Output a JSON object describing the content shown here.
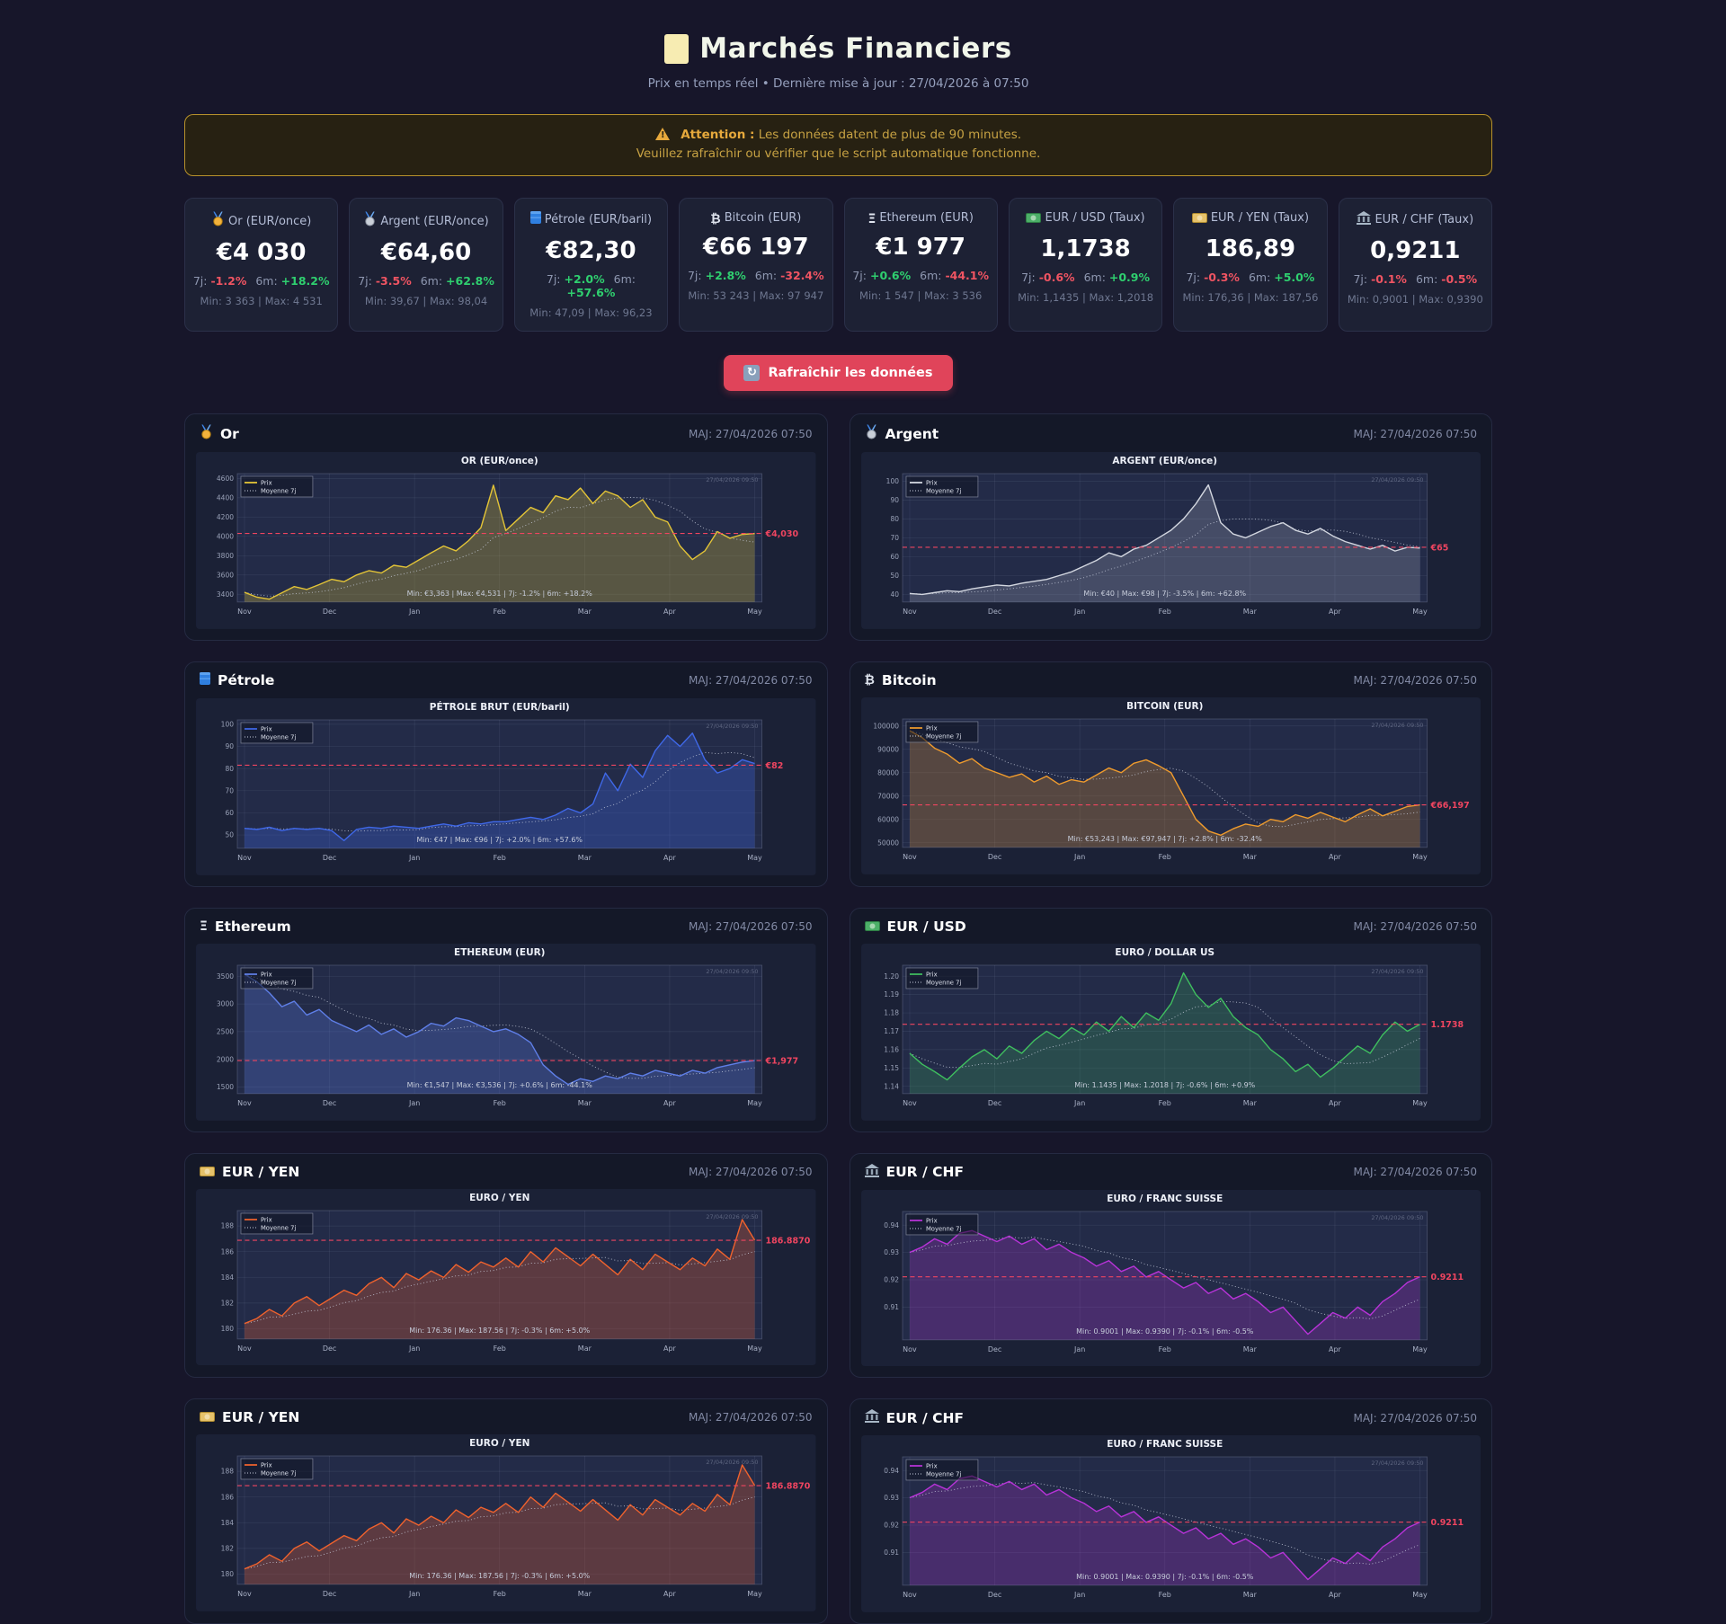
{
  "header": {
    "title": "Marchés Financiers",
    "subtitle": "Prix en temps réel • Dernière mise à jour : 27/04/2026 à 07:50"
  },
  "warning": {
    "bold": "Attention :",
    "line1": "Les données datent de plus de 90 minutes.",
    "line2": "Veuillez rafraîchir ou vérifier que le script automatique fonctionne."
  },
  "refresh": {
    "label": "Rafraîchir les données"
  },
  "shared": {
    "d7_label": "7j:",
    "m6_label": "6m:",
    "maj": "MAJ: 27/04/2026 07:50",
    "legend": [
      "Prix",
      "Moyenne 7j"
    ],
    "date_note": "27/04/2026 09:50",
    "pos_color": "#2fcf6f",
    "neg_color": "#f05462",
    "avg_color": "#ef4560"
  },
  "cards": [
    {
      "icon": "gold-medal",
      "label": "Or (EUR/once)",
      "price": "€4 030",
      "d7": "-1.2%",
      "d7_dir": "neg",
      "m6": "+18.2%",
      "m6_dir": "pos",
      "minmax": "Min: 3 363 | Max: 4 531"
    },
    {
      "icon": "silver-medal",
      "label": "Argent (EUR/once)",
      "price": "€64,60",
      "d7": "-3.5%",
      "d7_dir": "neg",
      "m6": "+62.8%",
      "m6_dir": "pos",
      "minmax": "Min: 39,67 | Max: 98,04"
    },
    {
      "icon": "oil-drum",
      "label": "Pétrole (EUR/baril)",
      "price": "€82,30",
      "d7": "+2.0%",
      "d7_dir": "pos",
      "m6": "+57.6%",
      "m6_dir": "pos",
      "minmax": "Min: 47,09 | Max: 96,23"
    },
    {
      "icon": "bitcoin",
      "label": "Bitcoin (EUR)",
      "price": "€66 197",
      "d7": "+2.8%",
      "d7_dir": "pos",
      "m6": "-32.4%",
      "m6_dir": "neg",
      "minmax": "Min: 53 243 | Max: 97 947"
    },
    {
      "icon": "ethereum",
      "label": "Ethereum (EUR)",
      "price": "€1 977",
      "d7": "+0.6%",
      "d7_dir": "pos",
      "m6": "-44.1%",
      "m6_dir": "neg",
      "minmax": "Min: 1 547 | Max: 3 536"
    },
    {
      "icon": "dollar-banknote",
      "label": "EUR / USD (Taux)",
      "price": "1,1738",
      "d7": "-0.6%",
      "d7_dir": "neg",
      "m6": "+0.9%",
      "m6_dir": "pos",
      "minmax": "Min: 1,1435 | Max: 1,2018"
    },
    {
      "icon": "yen-banknote",
      "label": "EUR / YEN (Taux)",
      "price": "186,89",
      "d7": "-0.3%",
      "d7_dir": "neg",
      "m6": "+5.0%",
      "m6_dir": "pos",
      "minmax": "Min: 176,36 | Max: 187,56"
    },
    {
      "icon": "bank",
      "label": "EUR / CHF (Taux)",
      "price": "0,9211",
      "d7": "-0.1%",
      "d7_dir": "neg",
      "m6": "-0.5%",
      "m6_dir": "neg",
      "minmax": "Min: 0,9001 | Max: 0,9390"
    }
  ],
  "panels": [
    {
      "icon": "gold-medal",
      "title": "Or",
      "chart": 0
    },
    {
      "icon": "silver-medal",
      "title": "Argent",
      "chart": 1
    },
    {
      "icon": "oil-drum",
      "title": "Pétrole",
      "chart": 2
    },
    {
      "icon": "bitcoin",
      "title": "Bitcoin",
      "chart": 3
    },
    {
      "icon": "ethereum",
      "title": "Ethereum",
      "chart": 4
    },
    {
      "icon": "dollar-banknote",
      "title": "EUR / USD",
      "chart": 5
    },
    {
      "icon": "yen-banknote",
      "title": "EUR / YEN",
      "chart": 6
    },
    {
      "icon": "bank",
      "title": "EUR / CHF",
      "chart": 7
    },
    {
      "icon": "yen-banknote",
      "title": "EUR / YEN",
      "chart": 6
    },
    {
      "icon": "bank",
      "title": "EUR / CHF",
      "chart": 7
    }
  ],
  "chart_data": [
    {
      "type": "line",
      "title": "OR (EUR/once)",
      "color": "#e3c437",
      "fill": "rgba(227,196,55,0.28)",
      "x_labels": [
        "Nov",
        "Dec",
        "Jan",
        "Feb",
        "Mar",
        "Apr",
        "May"
      ],
      "y_range": [
        3320,
        4650
      ],
      "tick_vals": [
        4600,
        4400,
        4200,
        4000,
        3800,
        3600,
        3400
      ],
      "tick_labels": [
        "4600",
        "4400",
        "4200",
        "4000",
        "3800",
        "3600",
        "3400"
      ],
      "avg_value": 4030,
      "avg_label": "€4,030",
      "annotation": "Min: €3,363 | Max: €4,531 | 7j: -1.2% | 6m: +18.2%",
      "values": [
        3420,
        3370,
        3350,
        3415,
        3480,
        3450,
        3500,
        3555,
        3530,
        3600,
        3645,
        3620,
        3700,
        3680,
        3755,
        3830,
        3900,
        3850,
        3955,
        4090,
        4530,
        4060,
        4180,
        4300,
        4245,
        4420,
        4380,
        4500,
        4340,
        4470,
        4420,
        4300,
        4380,
        4200,
        4150,
        3900,
        3760,
        3850,
        4050,
        3980,
        4020,
        4030
      ]
    },
    {
      "type": "line",
      "title": "ARGENT (EUR/once)",
      "color": "#d3d7e0",
      "fill": "rgba(190,196,210,0.22)",
      "x_labels": [
        "Nov",
        "Dec",
        "Jan",
        "Feb",
        "Mar",
        "Apr",
        "May"
      ],
      "y_range": [
        36,
        104
      ],
      "tick_vals": [
        100,
        90,
        80,
        70,
        60,
        50,
        40
      ],
      "tick_labels": [
        "100",
        "90",
        "80",
        "70",
        "60",
        "50",
        "40"
      ],
      "avg_value": 65,
      "avg_label": "€65",
      "annotation": "Min: €40 | Max: €98 | 7j: -3.5% | 6m: +62.8%",
      "values": [
        40.5,
        40,
        41,
        42,
        41.5,
        43,
        44,
        45,
        44.5,
        46,
        47,
        48,
        50,
        52,
        55,
        58,
        62,
        60,
        64,
        66,
        70,
        74,
        80,
        88,
        98,
        78,
        72,
        70,
        73,
        76,
        78,
        74,
        72,
        75,
        71,
        68,
        66,
        64,
        66,
        63,
        65,
        64.6
      ]
    },
    {
      "type": "line",
      "title": "PÉTROLE BRUT (EUR/baril)",
      "color": "#3f68e8",
      "fill": "rgba(63,104,232,0.30)",
      "x_labels": [
        "Nov",
        "Dec",
        "Jan",
        "Feb",
        "Mar",
        "Apr",
        "May"
      ],
      "y_range": [
        44,
        102
      ],
      "tick_vals": [
        100,
        90,
        80,
        70,
        60,
        50
      ],
      "tick_labels": [
        "100",
        "90",
        "80",
        "70",
        "60",
        "50"
      ],
      "avg_value": 81.5,
      "avg_label": "€82",
      "annotation": "Min: €47 | Max: €96 | 7j: +2.0% | 6m: +57.6%",
      "values": [
        53,
        52.5,
        53.5,
        52,
        53,
        52.5,
        53,
        52,
        47.5,
        52.5,
        53.5,
        53,
        54,
        53.5,
        53,
        54,
        55,
        54,
        55.5,
        55,
        56,
        56,
        57,
        58,
        57,
        59,
        62,
        60,
        64,
        78,
        70,
        82,
        76,
        88,
        95,
        90,
        96,
        84,
        78,
        80,
        84,
        82.3
      ]
    },
    {
      "type": "line",
      "title": "BITCOIN (EUR)",
      "color": "#ef9b2d",
      "fill": "rgba(239,155,45,0.25)",
      "x_labels": [
        "Nov",
        "Dec",
        "Jan",
        "Feb",
        "Mar",
        "Apr",
        "May"
      ],
      "y_range": [
        48000,
        103000
      ],
      "tick_vals": [
        100000,
        90000,
        80000,
        70000,
        60000,
        50000
      ],
      "tick_labels": [
        "100000",
        "90000",
        "80000",
        "70000",
        "60000",
        "50000"
      ],
      "avg_value": 66197,
      "avg_label": "€66,197",
      "annotation": "Min: €53,243 | Max: €97,947 | 7j: +2.8% | 6m: -32.4%",
      "values": [
        97947,
        95000,
        90500,
        88000,
        84000,
        86000,
        82000,
        80000,
        78000,
        79500,
        76000,
        78500,
        75000,
        77000,
        76000,
        79000,
        82000,
        80000,
        84000,
        85500,
        83000,
        80000,
        70000,
        60000,
        55000,
        53243,
        56000,
        58000,
        57000,
        60000,
        59000,
        62000,
        60500,
        63000,
        61000,
        59000,
        62000,
        64500,
        61500,
        63500,
        65500,
        66197
      ]
    },
    {
      "type": "line",
      "title": "ETHEREUM (EUR)",
      "color": "#5f7fe8",
      "fill": "rgba(95,127,232,0.28)",
      "x_labels": [
        "Nov",
        "Dec",
        "Jan",
        "Feb",
        "Mar",
        "Apr",
        "May"
      ],
      "y_range": [
        1380,
        3700
      ],
      "tick_vals": [
        3500,
        3000,
        2500,
        2000,
        1500
      ],
      "tick_labels": [
        "3500",
        "3000",
        "2500",
        "2000",
        "1500"
      ],
      "avg_value": 1977,
      "avg_label": "€1,977",
      "annotation": "Min: €1,547 | Max: €3,536 | 7j: +0.6% | 6m: -44.1%",
      "values": [
        3536,
        3400,
        3200,
        2950,
        3050,
        2800,
        2900,
        2700,
        2600,
        2500,
        2620,
        2450,
        2550,
        2400,
        2500,
        2650,
        2600,
        2750,
        2700,
        2600,
        2500,
        2550,
        2450,
        2300,
        1900,
        1700,
        1547,
        1650,
        1600,
        1700,
        1650,
        1750,
        1700,
        1800,
        1750,
        1700,
        1800,
        1750,
        1850,
        1900,
        1950,
        1977
      ]
    },
    {
      "type": "line",
      "title": "EURO / DOLLAR US",
      "color": "#3fbf5f",
      "fill": "rgba(63,191,95,0.22)",
      "x_labels": [
        "Nov",
        "Dec",
        "Jan",
        "Feb",
        "Mar",
        "Apr",
        "May"
      ],
      "y_range": [
        1.136,
        1.206
      ],
      "tick_vals": [
        1.2,
        1.19,
        1.18,
        1.17,
        1.16,
        1.15,
        1.14
      ],
      "tick_labels": [
        "1.20",
        "1.19",
        "1.18",
        "1.17",
        "1.16",
        "1.15",
        "1.14"
      ],
      "avg_value": 1.1738,
      "avg_label": "1.1738",
      "annotation": "Min: 1.1435 | Max: 1.2018 | 7j: -0.6% | 6m: +0.9%",
      "values": [
        1.158,
        1.152,
        1.148,
        1.1435,
        1.15,
        1.156,
        1.16,
        1.155,
        1.162,
        1.158,
        1.165,
        1.17,
        1.166,
        1.172,
        1.168,
        1.175,
        1.17,
        1.178,
        1.172,
        1.18,
        1.176,
        1.185,
        1.2018,
        1.19,
        1.183,
        1.188,
        1.178,
        1.172,
        1.168,
        1.16,
        1.155,
        1.148,
        1.152,
        1.145,
        1.15,
        1.156,
        1.162,
        1.158,
        1.168,
        1.175,
        1.17,
        1.1738
      ]
    },
    {
      "type": "line",
      "title": "EURO / YEN",
      "color": "#f0622d",
      "fill": "rgba(240,98,45,0.28)",
      "x_labels": [
        "Nov",
        "Dec",
        "Jan",
        "Feb",
        "Mar",
        "Apr",
        "May"
      ],
      "y_range": [
        179.2,
        189.2
      ],
      "tick_vals": [
        188,
        186,
        184,
        182,
        180
      ],
      "tick_labels": [
        "188",
        "186",
        "184",
        "182",
        "180"
      ],
      "avg_value": 186.887,
      "avg_label": "186.8870",
      "annotation": "Min: 176.36 | Max: 187.56 | 7j: -0.3% | 6m: +5.0%",
      "values": [
        180.4,
        180.8,
        181.5,
        181,
        182,
        182.5,
        181.8,
        182.4,
        183,
        182.6,
        183.5,
        184,
        183.2,
        184.3,
        183.8,
        184.5,
        184,
        185,
        184.4,
        185.2,
        184.8,
        185.5,
        184.8,
        186,
        185.2,
        186.3,
        185.6,
        184.9,
        185.8,
        185,
        184.2,
        185.4,
        184.6,
        185.8,
        185.2,
        184.6,
        185.5,
        184.9,
        186.2,
        185.4,
        188.5,
        186.89
      ]
    },
    {
      "type": "line",
      "title": "EURO / FRANC SUISSE",
      "color": "#b833d8",
      "fill": "rgba(184,51,216,0.25)",
      "x_labels": [
        "Nov",
        "Dec",
        "Jan",
        "Feb",
        "Mar",
        "Apr",
        "May"
      ],
      "y_range": [
        0.898,
        0.945
      ],
      "tick_vals": [
        0.94,
        0.93,
        0.92,
        0.91
      ],
      "tick_labels": [
        "0.94",
        "0.93",
        "0.92",
        "0.91"
      ],
      "avg_value": 0.9211,
      "avg_label": "0.9211",
      "annotation": "Min: 0.9001 | Max: 0.9390 | 7j: -0.1% | 6m: -0.5%",
      "values": [
        0.93,
        0.932,
        0.935,
        0.933,
        0.937,
        0.938,
        0.936,
        0.934,
        0.936,
        0.933,
        0.935,
        0.931,
        0.933,
        0.93,
        0.928,
        0.925,
        0.927,
        0.923,
        0.925,
        0.921,
        0.923,
        0.92,
        0.917,
        0.919,
        0.915,
        0.917,
        0.913,
        0.915,
        0.912,
        0.908,
        0.91,
        0.905,
        0.9001,
        0.904,
        0.908,
        0.906,
        0.91,
        0.907,
        0.912,
        0.915,
        0.919,
        0.9211
      ]
    }
  ]
}
